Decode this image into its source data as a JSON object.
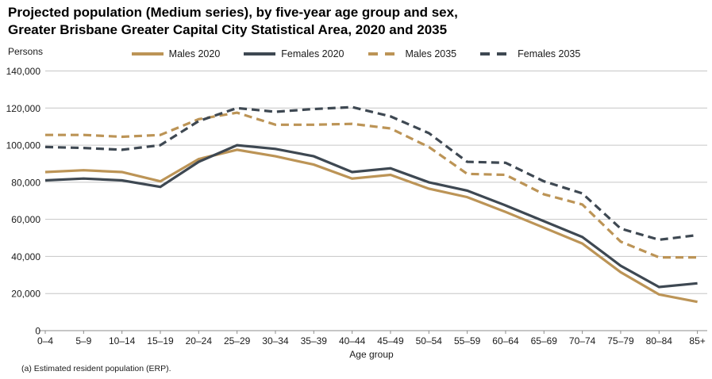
{
  "title_line1": "Projected population (Medium series), by five-year age group and sex,",
  "title_line2": "Greater Brisbane Greater Capital City Statistical Area, 2020 and 2035",
  "y_axis_unit_label": "Persons",
  "x_axis_label": "Age group",
  "footnote": "(a) Estimated resident population (ERP).",
  "colors": {
    "males_series": "#BC9456",
    "females_series": "#3E4852",
    "gridline": "#C6C6C6",
    "axis": "#8C8C8C",
    "text": "#1a1a1a",
    "background": "#FFFFFF"
  },
  "chart_data": {
    "type": "line",
    "title": "Projected population (Medium series), by five-year age group and sex, Greater Brisbane Greater Capital City Statistical Area, 2020 and 2035",
    "xlabel": "Age group",
    "ylabel": "Persons",
    "ylim": [
      0,
      140000
    ],
    "y_ticks": [
      0,
      20000,
      40000,
      60000,
      80000,
      100000,
      120000,
      140000
    ],
    "y_tick_labels": [
      "0",
      "20,000",
      "40,000",
      "60,000",
      "80,000",
      "100,000",
      "120,000",
      "140,000"
    ],
    "grid": "horizontal",
    "legend_position": "top-center",
    "categories": [
      "0–4",
      "5–9",
      "10–14",
      "15–19",
      "20–24",
      "25–29",
      "30–34",
      "35–39",
      "40–44",
      "45–49",
      "50–54",
      "55–59",
      "60–64",
      "65–69",
      "70–74",
      "75–79",
      "80–84",
      "85+"
    ],
    "series": [
      {
        "name": "Males 2020",
        "style": "solid",
        "color": "#BC9456",
        "values": [
          85500,
          86500,
          85500,
          80500,
          92500,
          97500,
          94000,
          89500,
          82000,
          84000,
          76500,
          72000,
          64000,
          55500,
          47000,
          31500,
          19500,
          15500
        ]
      },
      {
        "name": "Females 2020",
        "style": "solid",
        "color": "#3E4852",
        "values": [
          81000,
          82000,
          81000,
          77500,
          91000,
          100000,
          98000,
          94000,
          85500,
          87500,
          80000,
          75500,
          67500,
          59000,
          50500,
          35000,
          23500,
          25500
        ]
      },
      {
        "name": "Males 2035",
        "style": "dashed",
        "color": "#BC9456",
        "values": [
          105500,
          105500,
          104500,
          105500,
          114000,
          117500,
          111000,
          111000,
          111500,
          109000,
          99000,
          84500,
          84000,
          73500,
          68000,
          48000,
          39500,
          39500
        ]
      },
      {
        "name": "Females 2035",
        "style": "dashed",
        "color": "#3E4852",
        "values": [
          99000,
          98500,
          97500,
          100000,
          113000,
          120000,
          118000,
          119500,
          120500,
          115500,
          106500,
          91000,
          90500,
          80500,
          74000,
          55000,
          49000,
          51500
        ]
      }
    ]
  }
}
